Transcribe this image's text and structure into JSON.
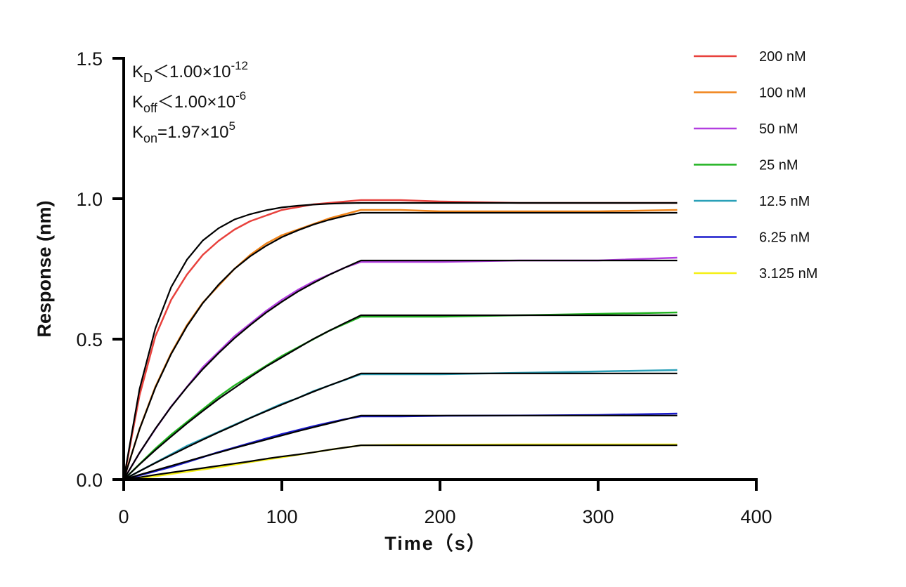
{
  "chart_data": {
    "type": "line",
    "xlabel": "Time（s）",
    "ylabel": "Response (nm)",
    "xlim": [
      0,
      400
    ],
    "ylim": [
      0,
      1.5
    ],
    "xticks": [
      0,
      100,
      200,
      300,
      400
    ],
    "yticks": [
      "0.0",
      "0.5",
      "1.0",
      "1.5"
    ],
    "grid": false,
    "legend_position": "right",
    "annotations": [
      {
        "main": "K",
        "sub": "D",
        "rel": "＜1.00×10",
        "sup": "-12"
      },
      {
        "main": "K",
        "sub": "off",
        "rel": "＜1.00×10",
        "sup": "-6"
      },
      {
        "main": "K",
        "sub": "on",
        "rel": "=1.97×10",
        "sup": "5"
      }
    ],
    "x": [
      0,
      10,
      20,
      30,
      40,
      50,
      60,
      70,
      80,
      90,
      100,
      110,
      120,
      130,
      140,
      150,
      175,
      200,
      250,
      300,
      350
    ],
    "fit_color": "#000000",
    "series": [
      {
        "name": "200 nM",
        "color": "#e8413c",
        "values": [
          0,
          0.3,
          0.51,
          0.64,
          0.73,
          0.8,
          0.85,
          0.89,
          0.92,
          0.94,
          0.96,
          0.97,
          0.98,
          0.985,
          0.99,
          0.995,
          0.995,
          0.99,
          0.985,
          0.985,
          0.985
        ],
        "fit": [
          0,
          0.322,
          0.538,
          0.685,
          0.783,
          0.851,
          0.895,
          0.926,
          0.945,
          0.959,
          0.969,
          0.975,
          0.979,
          0.982,
          0.984,
          0.985,
          0.985,
          0.985,
          0.985,
          0.985,
          0.985
        ]
      },
      {
        "name": "100 nM",
        "color": "#f0841a",
        "values": [
          0,
          0.18,
          0.33,
          0.45,
          0.55,
          0.63,
          0.69,
          0.75,
          0.8,
          0.84,
          0.87,
          0.89,
          0.91,
          0.93,
          0.945,
          0.96,
          0.96,
          0.955,
          0.955,
          0.955,
          0.96
        ],
        "fit": [
          0,
          0.179,
          0.327,
          0.447,
          0.546,
          0.628,
          0.694,
          0.75,
          0.795,
          0.832,
          0.863,
          0.887,
          0.908,
          0.925,
          0.939,
          0.95,
          0.95,
          0.95,
          0.95,
          0.95,
          0.95
        ]
      },
      {
        "name": "50 nM",
        "color": "#b23ee0",
        "values": [
          0,
          0.095,
          0.18,
          0.26,
          0.33,
          0.4,
          0.455,
          0.51,
          0.555,
          0.6,
          0.64,
          0.675,
          0.705,
          0.73,
          0.755,
          0.775,
          0.775,
          0.775,
          0.78,
          0.78,
          0.79
        ],
        "fit": [
          0,
          0.095,
          0.181,
          0.259,
          0.329,
          0.393,
          0.45,
          0.503,
          0.55,
          0.594,
          0.633,
          0.669,
          0.7,
          0.729,
          0.755,
          0.78,
          0.78,
          0.78,
          0.78,
          0.78,
          0.78
        ]
      },
      {
        "name": "25 nM",
        "color": "#22b322",
        "values": [
          0,
          0.055,
          0.11,
          0.16,
          0.205,
          0.25,
          0.295,
          0.335,
          0.37,
          0.405,
          0.44,
          0.47,
          0.5,
          0.53,
          0.555,
          0.58,
          0.58,
          0.58,
          0.585,
          0.59,
          0.595
        ],
        "fit": [
          0,
          0.054,
          0.105,
          0.153,
          0.2,
          0.244,
          0.287,
          0.326,
          0.365,
          0.402,
          0.435,
          0.468,
          0.501,
          0.53,
          0.558,
          0.585,
          0.585,
          0.585,
          0.585,
          0.585,
          0.585
        ]
      },
      {
        "name": "12.5 nM",
        "color": "#2aa0b8",
        "values": [
          0,
          0.03,
          0.06,
          0.09,
          0.12,
          0.145,
          0.17,
          0.195,
          0.22,
          0.245,
          0.27,
          0.29,
          0.315,
          0.335,
          0.355,
          0.375,
          0.375,
          0.375,
          0.38,
          0.385,
          0.39
        ],
        "fit": [
          0,
          0.03,
          0.059,
          0.087,
          0.115,
          0.142,
          0.168,
          0.193,
          0.219,
          0.243,
          0.267,
          0.29,
          0.313,
          0.335,
          0.356,
          0.378,
          0.378,
          0.378,
          0.378,
          0.378,
          0.378
        ]
      },
      {
        "name": "6.25 nM",
        "color": "#1a1acc",
        "values": [
          0,
          0.015,
          0.03,
          0.045,
          0.062,
          0.08,
          0.098,
          0.114,
          0.13,
          0.146,
          0.162,
          0.176,
          0.19,
          0.203,
          0.215,
          0.225,
          0.225,
          0.227,
          0.228,
          0.23,
          0.235
        ],
        "fit": [
          0,
          0.017,
          0.033,
          0.049,
          0.065,
          0.081,
          0.096,
          0.112,
          0.127,
          0.142,
          0.157,
          0.172,
          0.186,
          0.2,
          0.214,
          0.228,
          0.228,
          0.228,
          0.228,
          0.228,
          0.228
        ]
      },
      {
        "name": "3.125 nM",
        "color": "#f5f016",
        "values": [
          0,
          0.005,
          0.012,
          0.02,
          0.028,
          0.036,
          0.044,
          0.053,
          0.062,
          0.071,
          0.079,
          0.088,
          0.097,
          0.106,
          0.114,
          0.122,
          0.124,
          0.124,
          0.125,
          0.125,
          0.125
        ],
        "fit": [
          0,
          0.008,
          0.017,
          0.025,
          0.033,
          0.041,
          0.049,
          0.057,
          0.065,
          0.074,
          0.082,
          0.089,
          0.097,
          0.106,
          0.114,
          0.122,
          0.122,
          0.122,
          0.122,
          0.122,
          0.122
        ]
      }
    ]
  }
}
